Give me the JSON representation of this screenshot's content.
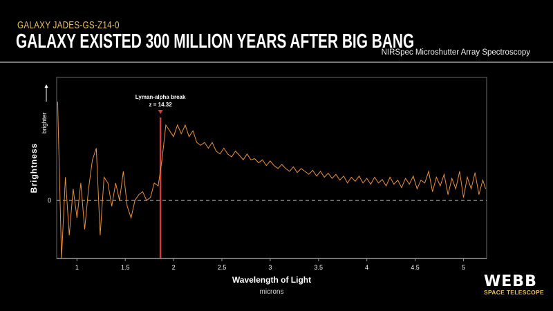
{
  "header": {
    "subtitle": "GALAXY JADES-GS-Z14-0",
    "title": "GALAXY EXISTED 300 MILLION YEARS AFTER BIG BANG",
    "instrument": "NIRSpec Microshutter Array Spectroscopy"
  },
  "logo": {
    "main": "WEBB",
    "sub": "SPACE TELESCOPE"
  },
  "chart_data": {
    "type": "line",
    "title": "",
    "xlabel": "Wavelength of Light",
    "xunit": "microns",
    "ylabel": "Brightness",
    "y_arrow_label": "brighter",
    "xlim": [
      0.79,
      5.24
    ],
    "ylim": [
      -1.0,
      2.12
    ],
    "xticks": [
      1,
      1.5,
      2,
      2.5,
      3,
      3.5,
      4,
      4.5,
      5
    ],
    "xtick_labels": [
      "1",
      "1.5",
      "2",
      "2.5",
      "3",
      "3.5",
      "4",
      "4.5",
      "5"
    ],
    "yticks": [
      0
    ],
    "ytick_labels": [
      "0"
    ],
    "grid": false,
    "zero_line": "dashed",
    "colors": {
      "series": "#e8913f",
      "annotation": "#d63a3a",
      "axis": "#888888"
    },
    "annotation": {
      "x": 1.864,
      "line1": "Lyman-alpha break",
      "line2": "z = 14.32"
    },
    "series": [
      {
        "x": [
          0.8,
          0.84,
          0.88,
          0.92,
          0.96,
          1.0,
          1.04,
          1.08,
          1.12,
          1.16,
          1.2,
          1.24,
          1.28,
          1.32,
          1.36,
          1.4,
          1.44,
          1.48,
          1.52,
          1.56,
          1.6,
          1.64,
          1.68,
          1.72,
          1.76,
          1.8,
          1.84,
          1.88,
          1.92,
          1.96,
          2.0,
          2.04,
          2.08,
          2.12,
          2.16,
          2.2,
          2.24,
          2.28,
          2.32,
          2.36,
          2.4,
          2.44,
          2.48,
          2.52,
          2.56,
          2.6,
          2.64,
          2.68,
          2.72,
          2.76,
          2.8,
          2.84,
          2.88,
          2.92,
          2.96,
          3.0,
          3.04,
          3.08,
          3.12,
          3.16,
          3.2,
          3.24,
          3.28,
          3.32,
          3.36,
          3.4,
          3.44,
          3.48,
          3.52,
          3.56,
          3.6,
          3.64,
          3.68,
          3.72,
          3.76,
          3.8,
          3.84,
          3.88,
          3.92,
          3.96,
          4.0,
          4.04,
          4.08,
          4.12,
          4.16,
          4.2,
          4.24,
          4.28,
          4.32,
          4.36,
          4.4,
          4.44,
          4.48,
          4.52,
          4.56,
          4.6,
          4.64,
          4.68,
          4.72,
          4.76,
          4.8,
          4.84,
          4.88,
          4.92,
          4.96,
          5.0,
          5.04,
          5.08,
          5.12,
          5.16,
          5.2,
          5.23
        ],
        "y": [
          1.7,
          -1.0,
          0.4,
          -0.6,
          0.2,
          -0.3,
          0.3,
          -0.5,
          0.2,
          0.7,
          0.9,
          -0.6,
          0.4,
          0.3,
          -0.1,
          0.3,
          0.0,
          0.5,
          -0.1,
          -0.3,
          0.0,
          0.1,
          0.15,
          0.0,
          0.05,
          0.3,
          0.25,
          0.7,
          1.3,
          1.2,
          1.1,
          1.3,
          1.15,
          1.3,
          1.1,
          1.2,
          1.0,
          0.95,
          1.0,
          0.9,
          1.0,
          0.85,
          0.8,
          0.9,
          0.8,
          0.75,
          0.85,
          0.78,
          0.7,
          0.8,
          0.7,
          0.72,
          0.65,
          0.7,
          0.6,
          0.68,
          0.6,
          0.55,
          0.62,
          0.55,
          0.5,
          0.58,
          0.48,
          0.55,
          0.5,
          0.45,
          0.52,
          0.42,
          0.5,
          0.4,
          0.47,
          0.38,
          0.45,
          0.35,
          0.42,
          0.3,
          0.4,
          0.33,
          0.42,
          0.3,
          0.38,
          0.28,
          0.4,
          0.3,
          0.36,
          0.25,
          0.4,
          0.28,
          0.35,
          0.22,
          0.38,
          0.28,
          0.42,
          0.2,
          0.35,
          0.3,
          0.5,
          0.15,
          0.4,
          0.25,
          0.45,
          0.1,
          0.38,
          0.2,
          0.5,
          0.05,
          0.4,
          0.2,
          0.48,
          0.1,
          0.35,
          0.2
        ]
      }
    ]
  }
}
